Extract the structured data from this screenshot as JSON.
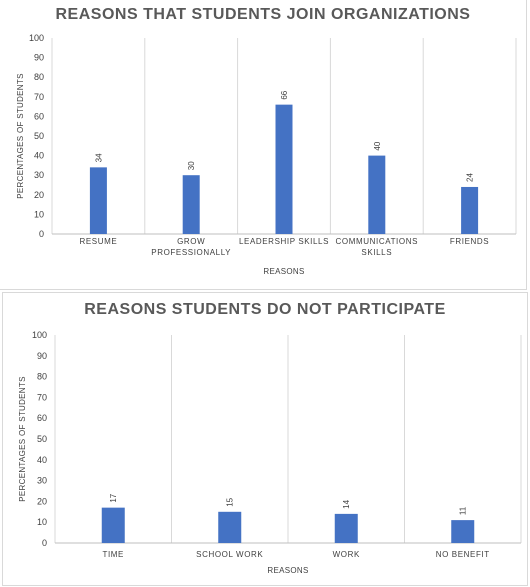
{
  "chart_data": [
    {
      "type": "bar",
      "title": "REASONS THAT STUDENTS JOIN ORGANIZATIONS",
      "xlabel": "REASONS",
      "ylabel": "PERCENTAGES OF STUDENTS",
      "categories": [
        [
          "RESUME"
        ],
        [
          "GROW",
          "PROFESSIONALLY"
        ],
        [
          "LEADERSHIP SKILLS"
        ],
        [
          "COMMUNICATIONS",
          "SKILLS"
        ],
        [
          "FRIENDS"
        ]
      ],
      "values": [
        34,
        30,
        66,
        40,
        24
      ],
      "ylim": [
        0,
        100
      ],
      "yticks": [
        0,
        10,
        20,
        30,
        40,
        50,
        60,
        70,
        80,
        90,
        100
      ],
      "grid": "vertical",
      "bar_color": "#4472C4"
    },
    {
      "type": "bar",
      "title": "REASONS STUDENTS DO NOT PARTICIPATE",
      "xlabel": "REASONS",
      "ylabel": "PERCENTAGES OF STUDENTS",
      "categories": [
        [
          "TIME"
        ],
        [
          "SCHOOL WORK"
        ],
        [
          "WORK"
        ],
        [
          "NO BENEFIT"
        ]
      ],
      "values": [
        17,
        15,
        14,
        11
      ],
      "ylim": [
        0,
        100
      ],
      "yticks": [
        0,
        10,
        20,
        30,
        40,
        50,
        60,
        70,
        80,
        90,
        100
      ],
      "grid": "vertical",
      "bar_color": "#4472C4"
    }
  ]
}
